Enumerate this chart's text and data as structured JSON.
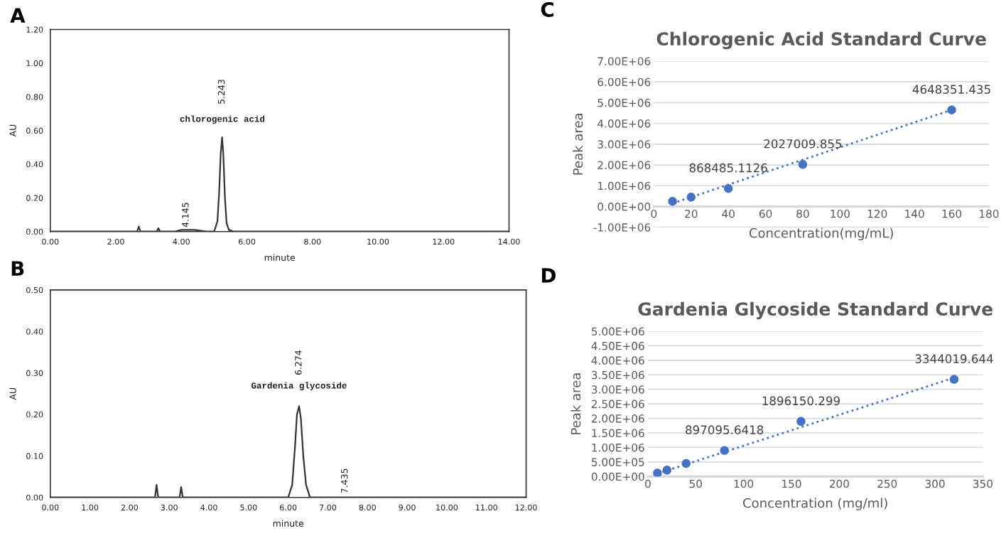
{
  "chart_data": [
    {
      "type": "line",
      "xlabel": "minute",
      "ylabel": "AU",
      "xlim": [
        0,
        14
      ],
      "ylim": [
        0,
        1.2
      ],
      "xticks": [
        {
          "value": 0,
          "label": "0.00"
        },
        {
          "value": 2,
          "label": "2.00"
        },
        {
          "value": 4,
          "label": "4.00"
        },
        {
          "value": 6,
          "label": "6.00"
        },
        {
          "value": 8,
          "label": "8.00"
        },
        {
          "value": 10,
          "label": "10.00"
        },
        {
          "value": 12,
          "label": "12.00"
        },
        {
          "value": 14,
          "label": "14.00"
        }
      ],
      "yticks": [
        {
          "value": 0,
          "label": "0.00"
        },
        {
          "value": 0.2,
          "label": "0.20"
        },
        {
          "value": 0.4,
          "label": "0.40"
        },
        {
          "value": 0.6,
          "label": "0.60"
        },
        {
          "value": 0.8,
          "label": "0.80"
        },
        {
          "value": 1.0,
          "label": "1.00"
        },
        {
          "value": 1.2,
          "label": "1.20"
        }
      ],
      "annotations": [
        "A",
        "5.243",
        "chlorogenic acid",
        "4.145"
      ],
      "series": [
        {
          "color": "#333333",
          "x": [
            0,
            0.5,
            1,
            1.5,
            2,
            2.5,
            2.65,
            2.7,
            2.75,
            3.0,
            3.25,
            3.3,
            3.35,
            3.8,
            4.0,
            4.1,
            4.145,
            4.2,
            4.4,
            4.8,
            5.0,
            5.1,
            5.15,
            5.2,
            5.243,
            5.28,
            5.33,
            5.38,
            5.45,
            5.6,
            6,
            7,
            8,
            9,
            10,
            11,
            12,
            13,
            14
          ],
          "values": [
            0,
            0,
            0,
            0,
            0,
            0,
            0,
            0.03,
            0,
            0,
            0,
            0.02,
            0,
            0,
            0.01,
            0.01,
            0.01,
            0.01,
            0.01,
            0,
            0,
            0.06,
            0.22,
            0.46,
            0.56,
            0.46,
            0.2,
            0.05,
            0.01,
            0,
            0,
            0,
            0,
            0,
            0,
            0,
            0,
            0,
            0
          ]
        }
      ]
    },
    {
      "type": "line",
      "xlabel": "minute",
      "ylabel": "AU",
      "xlim": [
        0,
        12
      ],
      "ylim": [
        0,
        0.5
      ],
      "xticks": [
        {
          "value": 0,
          "label": "0.00"
        },
        {
          "value": 1,
          "label": "1.00"
        },
        {
          "value": 2,
          "label": "2.00"
        },
        {
          "value": 3,
          "label": "3.00"
        },
        {
          "value": 4,
          "label": "4.00"
        },
        {
          "value": 5,
          "label": "5.00"
        },
        {
          "value": 6,
          "label": "6.00"
        },
        {
          "value": 7,
          "label": "7.00"
        },
        {
          "value": 8,
          "label": "8.00"
        },
        {
          "value": 9,
          "label": "9.00"
        },
        {
          "value": 10,
          "label": "10.00"
        },
        {
          "value": 11,
          "label": "11.00"
        },
        {
          "value": 12,
          "label": "12.00"
        }
      ],
      "yticks": [
        {
          "value": 0,
          "label": "0.00"
        },
        {
          "value": 0.1,
          "label": "0.10"
        },
        {
          "value": 0.2,
          "label": "0.20"
        },
        {
          "value": 0.3,
          "label": "0.30"
        },
        {
          "value": 0.4,
          "label": "0.40"
        },
        {
          "value": 0.5,
          "label": "0.50"
        }
      ],
      "annotations": [
        "B",
        "6.274",
        "Gardenia glycoside",
        "7.435"
      ],
      "series": [
        {
          "color": "#333333",
          "x": [
            0,
            0.5,
            1,
            1.5,
            2,
            2.5,
            2.64,
            2.68,
            2.72,
            3.0,
            3.26,
            3.3,
            3.34,
            4,
            5,
            6.0,
            6.1,
            6.17,
            6.22,
            6.274,
            6.32,
            6.38,
            6.45,
            6.55,
            7,
            7.4,
            7.435,
            7.47,
            8,
            9,
            10,
            11,
            12
          ],
          "values": [
            0,
            0,
            0,
            0,
            0,
            0,
            0,
            0.03,
            0,
            0,
            0,
            0.025,
            0,
            0,
            0,
            0,
            0.03,
            0.12,
            0.2,
            0.22,
            0.19,
            0.1,
            0.03,
            0,
            0,
            0,
            0,
            0,
            0,
            0,
            0,
            0,
            0
          ]
        }
      ]
    },
    {
      "type": "scatter",
      "title": "Chlorogenic Acid Standard Curve",
      "xlabel": "Concentration(mg/mL)",
      "ylabel": "Peak area",
      "grid": "y",
      "xlim": [
        0,
        180
      ],
      "ylim": [
        -1000000,
        7000000
      ],
      "xticks": [
        0,
        20,
        40,
        60,
        80,
        100,
        120,
        140,
        160,
        180
      ],
      "yticks": [
        {
          "value": -1000000,
          "label": "-1.00E+06"
        },
        {
          "value": 0,
          "label": "0.00E+00"
        },
        {
          "value": 1000000,
          "label": "1.00E+06"
        },
        {
          "value": 2000000,
          "label": "2.00E+06"
        },
        {
          "value": 3000000,
          "label": "3.00E+06"
        },
        {
          "value": 4000000,
          "label": "4.00E+06"
        },
        {
          "value": 5000000,
          "label": "5.00E+06"
        },
        {
          "value": 6000000,
          "label": "6.00E+06"
        },
        {
          "value": 7000000,
          "label": "7.00E+06"
        }
      ],
      "annotations": [
        "C"
      ],
      "series": [
        {
          "type": "line",
          "color": "#4472c4",
          "line_style": "dotted",
          "marker": "none",
          "x": [
            10,
            160
          ],
          "values": [
            150000,
            4650000
          ]
        },
        {
          "type": "scatter",
          "color": "#4472c4",
          "marker": "circle",
          "x": [
            10,
            20,
            40,
            80,
            160
          ],
          "values": [
            250000,
            450000,
            868485.1126,
            2027009.855,
            4648351.435
          ],
          "value_labels": [
            null,
            null,
            "868485.1126",
            "2027009.855",
            "4648351.435"
          ]
        }
      ]
    },
    {
      "type": "scatter",
      "title": "Gardenia Glycoside Standard Curve",
      "xlabel": "Concentration (mg/ml)",
      "ylabel": "Peak area",
      "grid": "y",
      "xlim": [
        0,
        350
      ],
      "ylim": [
        0,
        5000000
      ],
      "xticks": [
        0,
        50,
        100,
        150,
        200,
        250,
        300,
        350
      ],
      "yticks": [
        {
          "value": 0,
          "label": "0.00E+00"
        },
        {
          "value": 500000,
          "label": "5.00E+05"
        },
        {
          "value": 1000000,
          "label": "1.00E+06"
        },
        {
          "value": 1500000,
          "label": "1.50E+06"
        },
        {
          "value": 2000000,
          "label": "2.00E+06"
        },
        {
          "value": 2500000,
          "label": "2.50E+06"
        },
        {
          "value": 3000000,
          "label": "3.00E+06"
        },
        {
          "value": 3500000,
          "label": "3.50E+06"
        },
        {
          "value": 4000000,
          "label": "4.00E+06"
        },
        {
          "value": 4500000,
          "label": "4.50E+06"
        },
        {
          "value": 5000000,
          "label": "5.00E+06"
        }
      ],
      "annotations": [
        "D"
      ],
      "series": [
        {
          "type": "line",
          "color": "#4472c4",
          "line_style": "dotted",
          "marker": "none",
          "x": [
            10,
            320
          ],
          "values": [
            100000,
            3400000
          ]
        },
        {
          "type": "scatter",
          "color": "#4472c4",
          "marker": "circle",
          "x": [
            10,
            20,
            40,
            80,
            160,
            320
          ],
          "values": [
            120000,
            220000,
            450000,
            897095.6418,
            1896150.299,
            3344019.644
          ],
          "value_labels": [
            null,
            null,
            null,
            "897095.6418",
            "1896150.299",
            "3344019.644"
          ]
        }
      ]
    }
  ]
}
